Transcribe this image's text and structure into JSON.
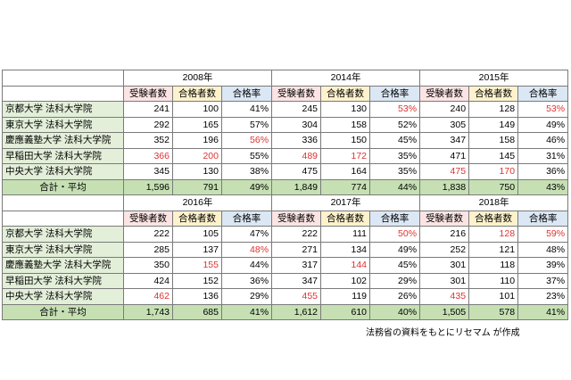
{
  "headers": {
    "applicants": "受験者数",
    "passers": "合格者数",
    "rate": "合格率"
  },
  "sections": [
    {
      "years": [
        "2008年",
        "2014年",
        "2015年"
      ],
      "rows": [
        {
          "school": "京都大学 法科大学院",
          "cells": [
            {
              "v": "241",
              "hl": false
            },
            {
              "v": "100",
              "hl": false
            },
            {
              "v": "41%",
              "hl": false
            },
            {
              "v": "245",
              "hl": false
            },
            {
              "v": "130",
              "hl": false
            },
            {
              "v": "53%",
              "hl": true
            },
            {
              "v": "240",
              "hl": false
            },
            {
              "v": "128",
              "hl": false
            },
            {
              "v": "53%",
              "hl": true
            }
          ]
        },
        {
          "school": "東京大学 法科大学院",
          "cells": [
            {
              "v": "292",
              "hl": false
            },
            {
              "v": "165",
              "hl": false
            },
            {
              "v": "57%",
              "hl": false
            },
            {
              "v": "304",
              "hl": false
            },
            {
              "v": "158",
              "hl": false
            },
            {
              "v": "52%",
              "hl": false
            },
            {
              "v": "305",
              "hl": false
            },
            {
              "v": "149",
              "hl": false
            },
            {
              "v": "49%",
              "hl": false
            }
          ]
        },
        {
          "school": "慶應義塾大学 法科大学院",
          "cells": [
            {
              "v": "352",
              "hl": false
            },
            {
              "v": "196",
              "hl": false
            },
            {
              "v": "56%",
              "hl": true
            },
            {
              "v": "336",
              "hl": false
            },
            {
              "v": "150",
              "hl": false
            },
            {
              "v": "45%",
              "hl": false
            },
            {
              "v": "347",
              "hl": false
            },
            {
              "v": "158",
              "hl": false
            },
            {
              "v": "46%",
              "hl": false
            }
          ]
        },
        {
          "school": "早稲田大学 法科大学院",
          "cells": [
            {
              "v": "366",
              "hl": true
            },
            {
              "v": "200",
              "hl": true
            },
            {
              "v": "55%",
              "hl": false
            },
            {
              "v": "489",
              "hl": true
            },
            {
              "v": "172",
              "hl": true
            },
            {
              "v": "35%",
              "hl": false
            },
            {
              "v": "471",
              "hl": false
            },
            {
              "v": "145",
              "hl": false
            },
            {
              "v": "31%",
              "hl": false
            }
          ]
        },
        {
          "school": "中央大学 法科大学院",
          "cells": [
            {
              "v": "345",
              "hl": false
            },
            {
              "v": "130",
              "hl": false
            },
            {
              "v": "38%",
              "hl": false
            },
            {
              "v": "475",
              "hl": false
            },
            {
              "v": "164",
              "hl": false
            },
            {
              "v": "35%",
              "hl": false
            },
            {
              "v": "475",
              "hl": true
            },
            {
              "v": "170",
              "hl": true
            },
            {
              "v": "36%",
              "hl": false
            }
          ]
        }
      ],
      "total": {
        "label": "合計・平均",
        "cells": [
          "1,596",
          "791",
          "49%",
          "1,849",
          "774",
          "44%",
          "1,838",
          "750",
          "43%"
        ]
      }
    },
    {
      "years": [
        "2016年",
        "2017年",
        "2018年"
      ],
      "rows": [
        {
          "school": "京都大学 法科大学院",
          "cells": [
            {
              "v": "222",
              "hl": false
            },
            {
              "v": "105",
              "hl": false
            },
            {
              "v": "47%",
              "hl": false
            },
            {
              "v": "222",
              "hl": false
            },
            {
              "v": "111",
              "hl": false
            },
            {
              "v": "50%",
              "hl": true
            },
            {
              "v": "216",
              "hl": false
            },
            {
              "v": "128",
              "hl": true
            },
            {
              "v": "59%",
              "hl": true
            }
          ]
        },
        {
          "school": "東京大学 法科大学院",
          "cells": [
            {
              "v": "285",
              "hl": false
            },
            {
              "v": "137",
              "hl": false
            },
            {
              "v": "48%",
              "hl": true
            },
            {
              "v": "271",
              "hl": false
            },
            {
              "v": "134",
              "hl": false
            },
            {
              "v": "49%",
              "hl": false
            },
            {
              "v": "252",
              "hl": false
            },
            {
              "v": "121",
              "hl": false
            },
            {
              "v": "48%",
              "hl": false
            }
          ]
        },
        {
          "school": "慶應義塾大学 法科大学院",
          "cells": [
            {
              "v": "350",
              "hl": false
            },
            {
              "v": "155",
              "hl": true
            },
            {
              "v": "44%",
              "hl": false
            },
            {
              "v": "317",
              "hl": false
            },
            {
              "v": "144",
              "hl": true
            },
            {
              "v": "45%",
              "hl": false
            },
            {
              "v": "301",
              "hl": false
            },
            {
              "v": "118",
              "hl": false
            },
            {
              "v": "39%",
              "hl": false
            }
          ]
        },
        {
          "school": "早稲田大学 法科大学院",
          "cells": [
            {
              "v": "424",
              "hl": false
            },
            {
              "v": "152",
              "hl": false
            },
            {
              "v": "36%",
              "hl": false
            },
            {
              "v": "347",
              "hl": false
            },
            {
              "v": "102",
              "hl": false
            },
            {
              "v": "29%",
              "hl": false
            },
            {
              "v": "301",
              "hl": false
            },
            {
              "v": "110",
              "hl": false
            },
            {
              "v": "37%",
              "hl": false
            }
          ]
        },
        {
          "school": "中央大学 法科大学院",
          "cells": [
            {
              "v": "462",
              "hl": true
            },
            {
              "v": "136",
              "hl": false
            },
            {
              "v": "29%",
              "hl": false
            },
            {
              "v": "455",
              "hl": true
            },
            {
              "v": "119",
              "hl": false
            },
            {
              "v": "26%",
              "hl": false
            },
            {
              "v": "435",
              "hl": true
            },
            {
              "v": "101",
              "hl": false
            },
            {
              "v": "23%",
              "hl": false
            }
          ]
        }
      ],
      "total": {
        "label": "合計・平均",
        "cells": [
          "1,743",
          "685",
          "41%",
          "1,612",
          "610",
          "40%",
          "1,505",
          "578",
          "41%"
        ]
      }
    }
  ],
  "source": "法務省の資料をもとにリセマム が作成"
}
